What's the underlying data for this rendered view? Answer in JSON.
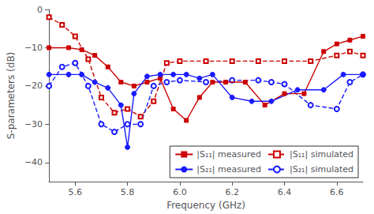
{
  "chart_data": {
    "type": "line",
    "xlabel": "Frequency (GHz)",
    "ylabel": "S-parameters (dB)",
    "xlim": [
      5.5,
      6.7
    ],
    "ylim": [
      -45,
      0
    ],
    "xticks": [
      5.6,
      5.8,
      {
        "value": 6.0,
        "label": "6.0"
      },
      6.2,
      6.4,
      6.6
    ],
    "yticks": [
      0,
      {
        "value": -10,
        "label": "−10"
      },
      {
        "value": -20,
        "label": "−20"
      },
      {
        "value": -30,
        "label": "−30"
      },
      {
        "value": -40,
        "label": "−40"
      }
    ],
    "grid": false,
    "legend": "lower right",
    "series": [
      {
        "name": "|S₁₁| measured",
        "color": "#cc0000",
        "marker": "square",
        "line_style": "solid",
        "x": [
          5.5,
          5.575,
          5.625,
          5.675,
          5.725,
          5.775,
          5.825,
          5.875,
          5.925,
          5.975,
          6.025,
          6.075,
          6.125,
          6.175,
          6.25,
          6.325,
          6.4,
          6.475,
          6.55,
          6.6,
          6.65,
          6.7
        ],
        "values": [
          -10,
          -10,
          -10.5,
          -12,
          -15,
          -19,
          -20,
          -19,
          -18,
          -26,
          -29,
          -23,
          -19,
          -19,
          -19,
          -25,
          -22,
          -22,
          -11,
          -9,
          -8,
          -7
        ]
      },
      {
        "name": "|S₁₁| simulated",
        "color": "#cc0000",
        "marker": "open_square",
        "line_style": "dashed",
        "x": [
          5.5,
          5.55,
          5.6,
          5.65,
          5.7,
          5.75,
          5.8,
          5.85,
          5.9,
          5.95,
          6.0,
          6.1,
          6.2,
          6.3,
          6.4,
          6.5,
          6.6,
          6.65,
          6.7
        ],
        "values": [
          -2,
          -4,
          -7,
          -13,
          -23,
          -27,
          -26,
          -28,
          -24,
          -14,
          -13.5,
          -13.5,
          -13.5,
          -13.5,
          -13.5,
          -13.5,
          -12,
          -11,
          -12
        ]
      },
      {
        "name": "|S₂₁| measured",
        "color": "#1a1aff",
        "marker": "circle",
        "line_style": "solid",
        "x": [
          5.5,
          5.575,
          5.625,
          5.675,
          5.725,
          5.775,
          5.8,
          5.825,
          5.875,
          5.925,
          5.975,
          6.025,
          6.075,
          6.125,
          6.2,
          6.275,
          6.35,
          6.45,
          6.55,
          6.625,
          6.7
        ],
        "values": [
          -17,
          -17,
          -17,
          -19,
          -20.5,
          -25,
          -36,
          -22,
          -17.5,
          -17,
          -17,
          -17,
          -18,
          -17,
          -23,
          -24,
          -24,
          -21,
          -21,
          -17,
          -17
        ]
      },
      {
        "name": "|S₂₁| simulated",
        "color": "#1a1aff",
        "marker": "open_circle",
        "line_style": "dashed",
        "x": [
          5.5,
          5.55,
          5.6,
          5.65,
          5.7,
          5.75,
          5.8,
          5.85,
          5.9,
          5.95,
          6.0,
          6.1,
          6.2,
          6.3,
          6.35,
          6.4,
          6.5,
          6.6,
          6.65,
          6.7
        ],
        "values": [
          -20,
          -15,
          -14,
          -20,
          -30,
          -32,
          -30,
          -30,
          -20,
          -19,
          -18.5,
          -19,
          -18.5,
          -18.5,
          -19,
          -19.5,
          -25,
          -26,
          -19,
          -17
        ]
      }
    ]
  }
}
